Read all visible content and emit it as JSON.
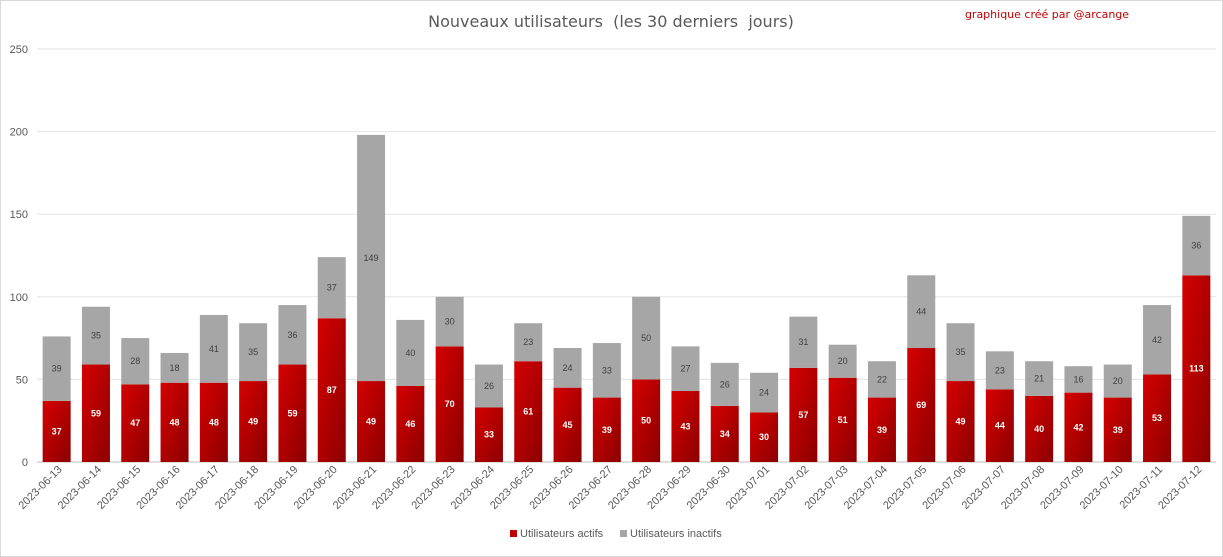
{
  "chart_data": {
    "type": "bar",
    "stacked": true,
    "title": "Nouveaux utilisateurs  (les 30 derniers  jours)",
    "credit": "graphique créé par @arcange",
    "categories": [
      "2023-06-13",
      "2023-06-14",
      "2023-06-15",
      "2023-06-16",
      "2023-06-17",
      "2023-06-18",
      "2023-06-19",
      "2023-06-20",
      "2023-06-21",
      "2023-06-22",
      "2023-06-23",
      "2023-06-24",
      "2023-06-25",
      "2023-06-26",
      "2023-06-27",
      "2023-06-28",
      "2023-06-29",
      "2023-06-30",
      "2023-07-01",
      "2023-07-02",
      "2023-07-03",
      "2023-07-04",
      "2023-07-05",
      "2023-07-06",
      "2023-07-07",
      "2023-07-08",
      "2023-07-09",
      "2023-07-10",
      "2023-07-11",
      "2023-07-12"
    ],
    "series": [
      {
        "name": "Utilisateurs actifs",
        "color": "#c00000",
        "values": [
          37,
          59,
          47,
          48,
          48,
          49,
          59,
          87,
          49,
          46,
          70,
          33,
          61,
          45,
          39,
          50,
          43,
          34,
          30,
          57,
          51,
          39,
          69,
          49,
          44,
          40,
          42,
          39,
          53,
          113
        ]
      },
      {
        "name": "Utilisateurs inactifs",
        "color": "#a6a6a6",
        "values": [
          39,
          35,
          28,
          18,
          41,
          35,
          36,
          37,
          149,
          40,
          30,
          26,
          23,
          24,
          33,
          50,
          27,
          26,
          24,
          31,
          20,
          22,
          44,
          35,
          23,
          21,
          16,
          20,
          42,
          36
        ]
      }
    ],
    "ylim": [
      0,
      250
    ],
    "yticks": [
      0,
      50,
      100,
      150,
      200,
      250
    ],
    "grid": true,
    "legend_position": "bottom"
  }
}
